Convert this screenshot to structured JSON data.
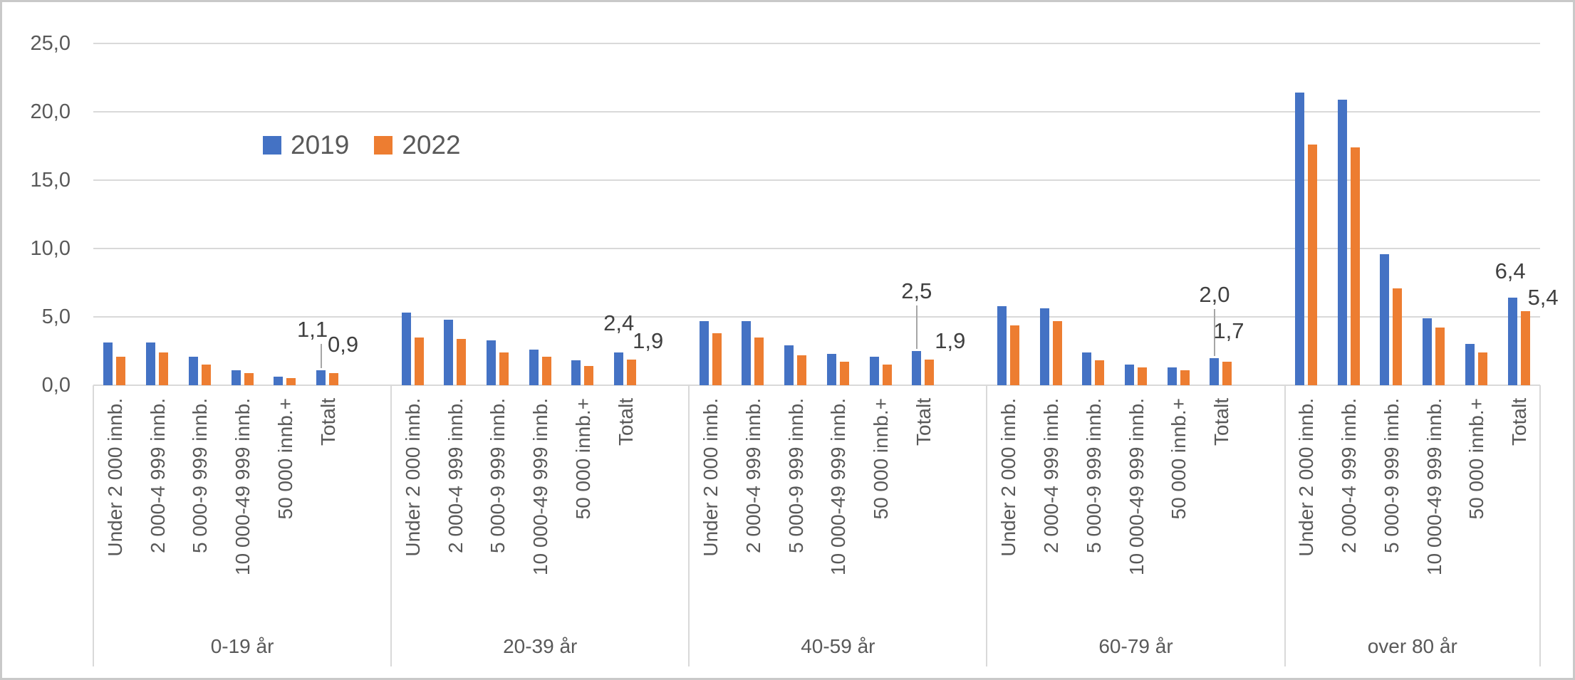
{
  "colors": {
    "series_2019": "#4472C4",
    "series_2022": "#ED7D31",
    "grid": "#D9D9D9",
    "text": "#595959",
    "leader_line": "#A6A6A6"
  },
  "chart_data": {
    "type": "bar",
    "title": "",
    "grid": true,
    "legend_position": "inside-top-left",
    "y_axis": {
      "min": 0,
      "max": 25,
      "step": 5,
      "tick_labels": [
        "0,0",
        "5,0",
        "10,0",
        "15,0",
        "20,0",
        "25,0"
      ]
    },
    "categories": [
      "Under 2 000 innb.",
      "2 000-4 999 innb.",
      "5 000-9 999 innb.",
      "10 000-49 999 innb.",
      "50 000 innb.+",
      "Totalt"
    ],
    "group_labels": [
      "0-19 år",
      "20-39 år",
      "40-59 år",
      "60-79 år",
      "over 80 år"
    ],
    "series": [
      {
        "name": "2019",
        "color": "#4472C4",
        "values": [
          [
            3.1,
            3.1,
            2.1,
            1.1,
            0.6,
            1.1
          ],
          [
            5.3,
            4.8,
            3.3,
            2.6,
            1.8,
            2.4
          ],
          [
            4.7,
            4.7,
            2.9,
            2.3,
            2.1,
            2.5
          ],
          [
            5.8,
            5.6,
            2.4,
            1.5,
            1.3,
            2.0
          ],
          [
            21.4,
            20.9,
            9.6,
            4.9,
            3.0,
            6.4
          ]
        ]
      },
      {
        "name": "2022",
        "color": "#ED7D31",
        "values": [
          [
            2.1,
            2.4,
            1.5,
            0.9,
            0.5,
            0.9
          ],
          [
            3.5,
            3.4,
            2.4,
            2.1,
            1.4,
            1.9
          ],
          [
            3.8,
            3.5,
            2.2,
            1.7,
            1.5,
            1.9
          ],
          [
            4.4,
            4.7,
            1.8,
            1.3,
            1.1,
            1.7
          ],
          [
            17.6,
            17.4,
            7.1,
            4.2,
            2.4,
            5.4
          ]
        ]
      }
    ],
    "data_labels": [
      {
        "group": "0-19 år",
        "label_2019": "1,1",
        "label_2022": "0,9"
      },
      {
        "group": "20-39 år",
        "label_2019": "2,4",
        "label_2022": "1,9"
      },
      {
        "group": "40-59 år",
        "label_2019": "2,5",
        "label_2022": "1,9"
      },
      {
        "group": "60-79 år",
        "label_2019": "2,0",
        "label_2022": "1,7"
      },
      {
        "group": "over 80 år",
        "label_2019": "6,4",
        "label_2022": "5,4"
      }
    ]
  }
}
